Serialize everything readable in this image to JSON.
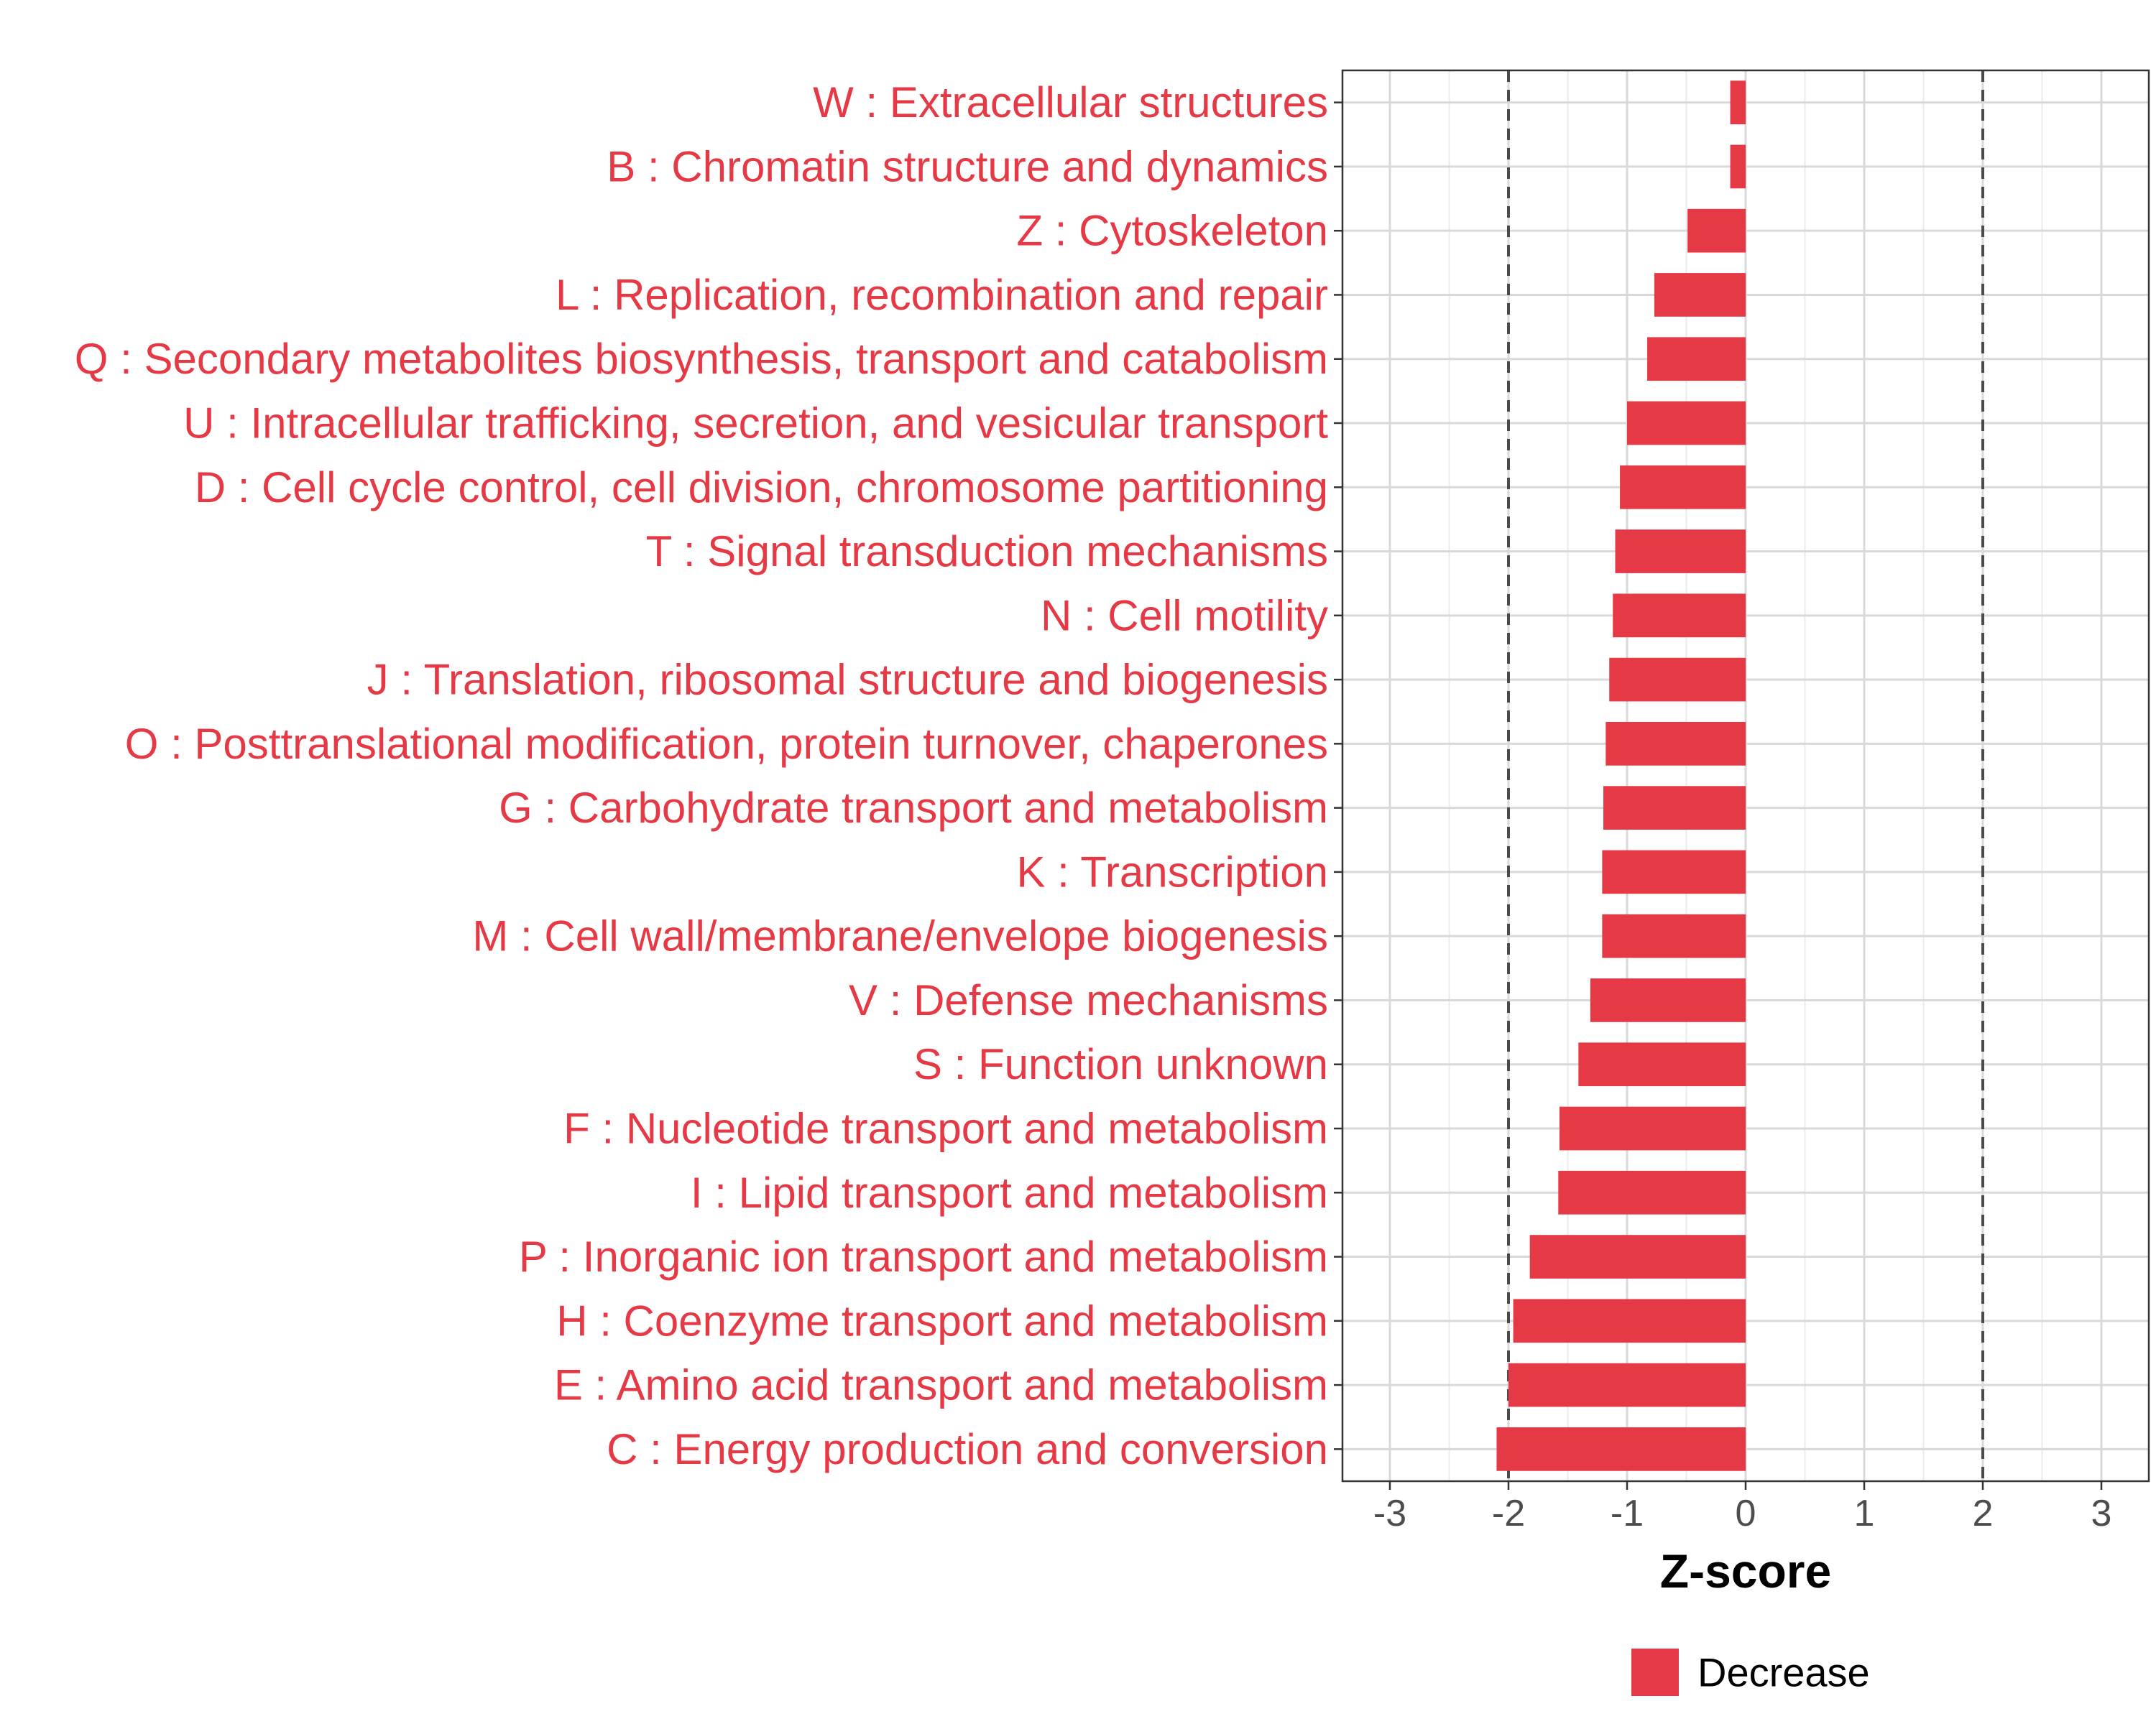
{
  "chart_data": {
    "type": "bar",
    "orientation": "horizontal",
    "categories": [
      "W : Extracellular structures",
      "B : Chromatin structure and dynamics",
      "Z : Cytoskeleton",
      "L : Replication, recombination and repair",
      "Q : Secondary metabolites biosynthesis, transport and catabolism",
      "U : Intracellular trafficking, secretion, and vesicular transport",
      "D : Cell cycle control, cell division, chromosome partitioning",
      "T : Signal transduction mechanisms",
      "N : Cell motility",
      "J : Translation, ribosomal structure and biogenesis",
      "O : Posttranslational modification, protein turnover, chaperones",
      "G : Carbohydrate transport and metabolism",
      "K : Transcription",
      "M : Cell wall/membrane/envelope biogenesis",
      "V : Defense mechanisms",
      "S : Function unknown",
      "F : Nucleotide transport and metabolism",
      "I : Lipid transport and metabolism",
      "P : Inorganic ion transport and metabolism",
      "H : Coenzyme transport and metabolism",
      "E : Amino acid transport and metabolism",
      "C : Energy production and conversion"
    ],
    "values": [
      -0.13,
      -0.13,
      -0.49,
      -0.77,
      -0.83,
      -1.0,
      -1.06,
      -1.1,
      -1.12,
      -1.15,
      -1.18,
      -1.2,
      -1.21,
      -1.21,
      -1.31,
      -1.41,
      -1.57,
      -1.58,
      -1.82,
      -1.96,
      -2.0,
      -2.1
    ],
    "series": [
      {
        "name": "Decrease",
        "color": "#e63946"
      }
    ],
    "xlabel": "Z-score",
    "ylabel": "",
    "xlim": [
      -3.4,
      3.4
    ],
    "xticks": [
      -3,
      -2,
      -1,
      0,
      1,
      2,
      3
    ],
    "xtick_labels": [
      "-3",
      "-2",
      "-1",
      "0",
      "1",
      "2",
      "3"
    ],
    "reference_lines": [
      -2,
      2
    ],
    "grid": true,
    "legend": {
      "position": "bottom",
      "entries": [
        "Decrease"
      ]
    },
    "bar_color": "#e63946",
    "label_color": "#e63946"
  }
}
